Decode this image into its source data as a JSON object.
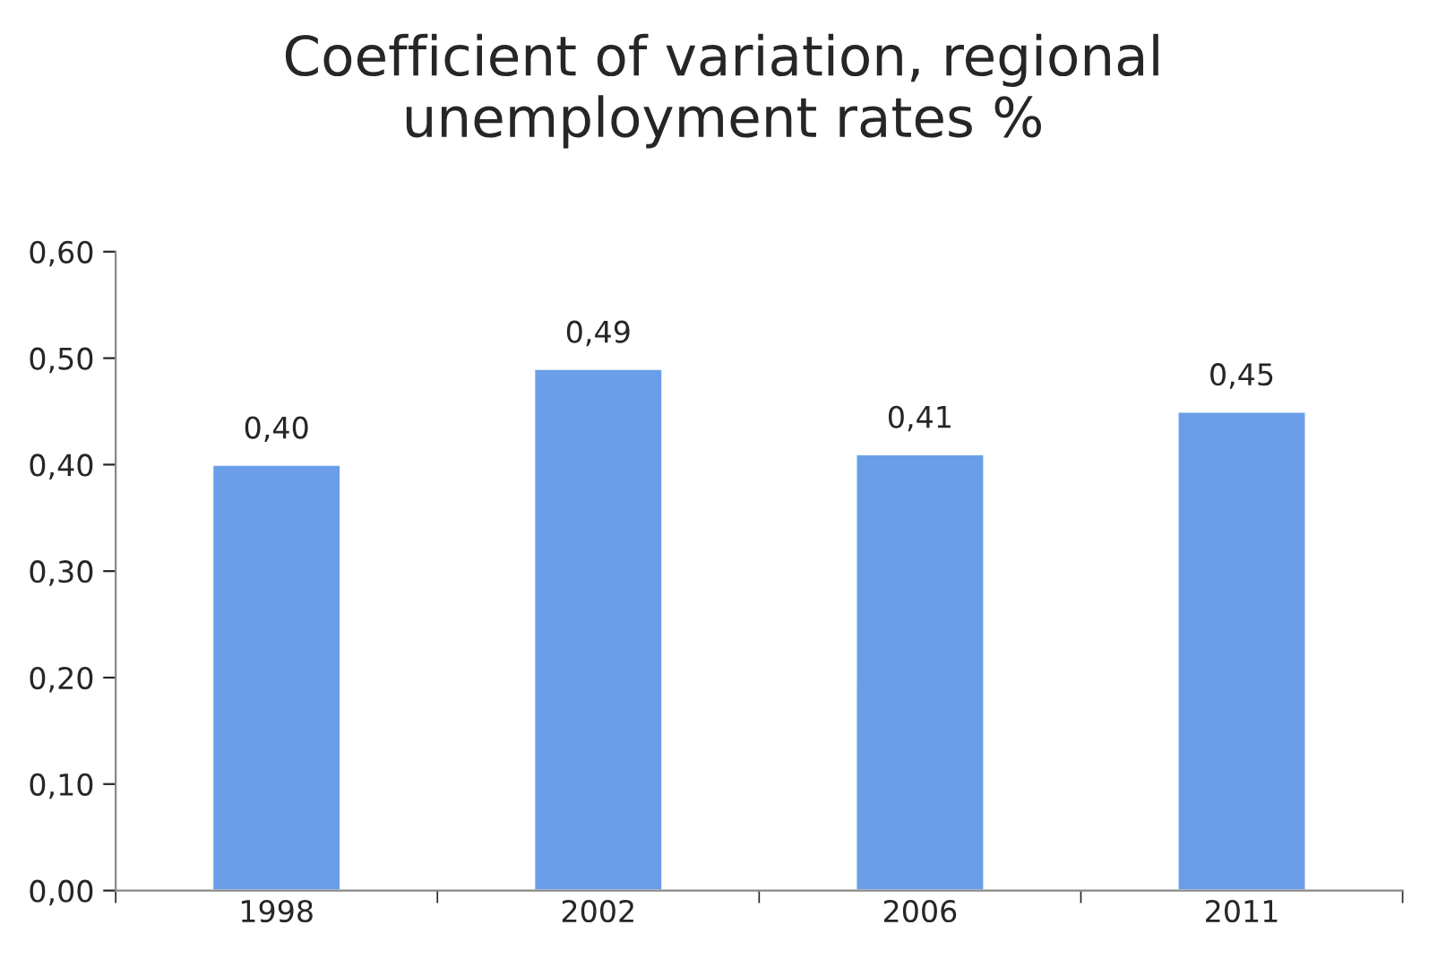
{
  "chart_data": {
    "type": "bar",
    "title": "Coefficient of variation, regional unemployment rates %",
    "categories": [
      "1998",
      "2002",
      "2006",
      "2011"
    ],
    "values": [
      0.4,
      0.49,
      0.41,
      0.45
    ],
    "value_labels": [
      "0,40",
      "0,49",
      "0,41",
      "0,45"
    ],
    "color": "#6a9ee8",
    "ylim": [
      0,
      0.6
    ],
    "yticks": [
      {
        "value": 0,
        "label": "0,00"
      },
      {
        "value": 0.1,
        "label": "0,10"
      },
      {
        "value": 0.2,
        "label": "0,20"
      },
      {
        "value": 0.3,
        "label": "0,30"
      },
      {
        "value": 0.4,
        "label": "0,40"
      },
      {
        "value": 0.5,
        "label": "0,50"
      },
      {
        "value": 0.6,
        "label": "0,60"
      }
    ],
    "grid": false
  }
}
